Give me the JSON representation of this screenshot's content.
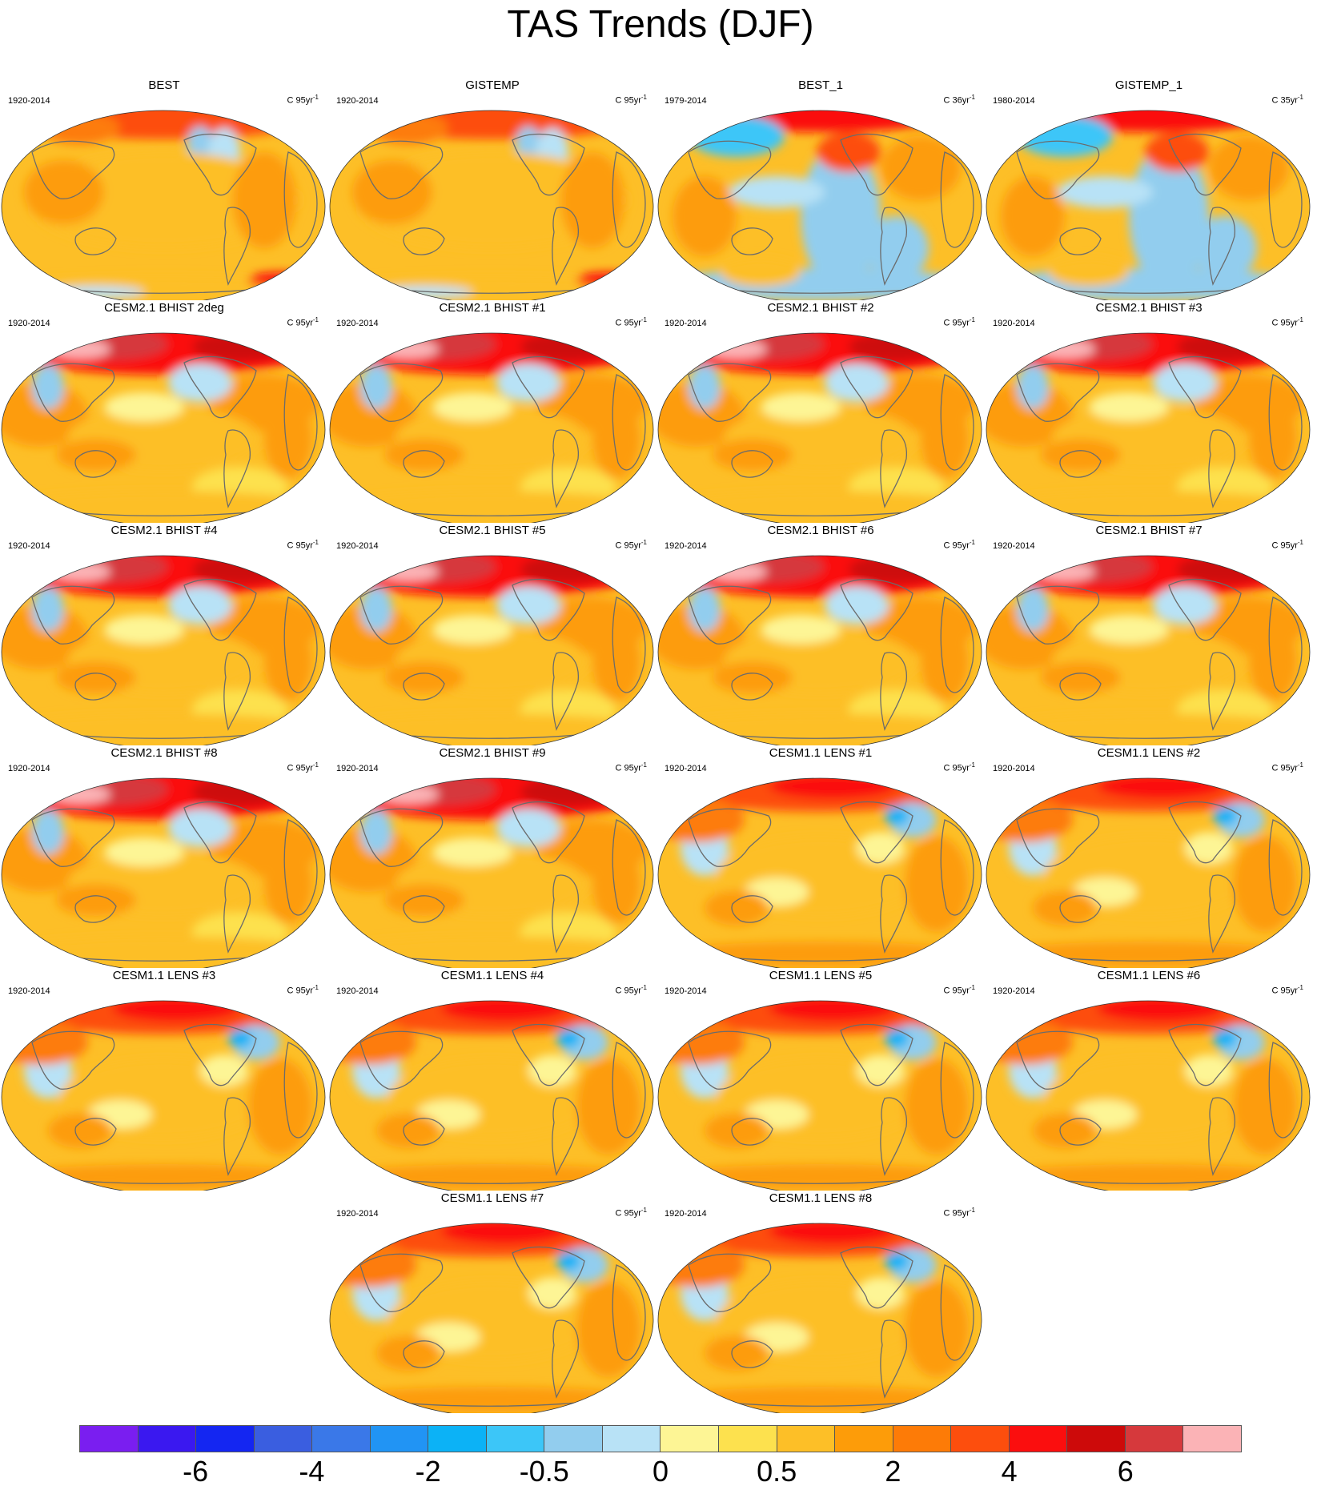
{
  "title": "TAS Trends (DJF)",
  "panels": [
    {
      "title": "BEST",
      "period": "1920-2014",
      "units": "C 95yr",
      "units_sup": "-1",
      "pattern": "obs_long"
    },
    {
      "title": "GISTEMP",
      "period": "1920-2014",
      "units": "C 95yr",
      "units_sup": "-1",
      "pattern": "obs_long"
    },
    {
      "title": "BEST_1",
      "period": "1979-2014",
      "units": "C 36yr",
      "units_sup": "-1",
      "pattern": "obs_short"
    },
    {
      "title": "GISTEMP_1",
      "period": "1980-2014",
      "units": "C 35yr",
      "units_sup": "-1",
      "pattern": "obs_short"
    },
    {
      "title": "CESM2.1 BHIST 2deg",
      "period": "1920-2014",
      "units": "C 95yr",
      "units_sup": "-1",
      "pattern": "model"
    },
    {
      "title": "CESM2.1 BHIST #1",
      "period": "1920-2014",
      "units": "C 95yr",
      "units_sup": "-1",
      "pattern": "model"
    },
    {
      "title": "CESM2.1 BHIST #2",
      "period": "1920-2014",
      "units": "C 95yr",
      "units_sup": "-1",
      "pattern": "model"
    },
    {
      "title": "CESM2.1 BHIST #3",
      "period": "1920-2014",
      "units": "C 95yr",
      "units_sup": "-1",
      "pattern": "model"
    },
    {
      "title": "CESM2.1 BHIST #4",
      "period": "1920-2014",
      "units": "C 95yr",
      "units_sup": "-1",
      "pattern": "model"
    },
    {
      "title": "CESM2.1 BHIST #5",
      "period": "1920-2014",
      "units": "C 95yr",
      "units_sup": "-1",
      "pattern": "model"
    },
    {
      "title": "CESM2.1 BHIST #6",
      "period": "1920-2014",
      "units": "C 95yr",
      "units_sup": "-1",
      "pattern": "model"
    },
    {
      "title": "CESM2.1 BHIST #7",
      "period": "1920-2014",
      "units": "C 95yr",
      "units_sup": "-1",
      "pattern": "model"
    },
    {
      "title": "CESM2.1 BHIST #8",
      "period": "1920-2014",
      "units": "C 95yr",
      "units_sup": "-1",
      "pattern": "model"
    },
    {
      "title": "CESM2.1 BHIST #9",
      "period": "1920-2014",
      "units": "C 95yr",
      "units_sup": "-1",
      "pattern": "model"
    },
    {
      "title": "CESM1.1 LENS #1",
      "period": "1920-2014",
      "units": "C 95yr",
      "units_sup": "-1",
      "pattern": "lens"
    },
    {
      "title": "CESM1.1 LENS #2",
      "period": "1920-2014",
      "units": "C 95yr",
      "units_sup": "-1",
      "pattern": "lens"
    },
    {
      "title": "CESM1.1 LENS #3",
      "period": "1920-2014",
      "units": "C 95yr",
      "units_sup": "-1",
      "pattern": "lens"
    },
    {
      "title": "CESM1.1 LENS #4",
      "period": "1920-2014",
      "units": "C 95yr",
      "units_sup": "-1",
      "pattern": "lens"
    },
    {
      "title": "CESM1.1 LENS #5",
      "period": "1920-2014",
      "units": "C 95yr",
      "units_sup": "-1",
      "pattern": "lens"
    },
    {
      "title": "CESM1.1 LENS #6",
      "period": "1920-2014",
      "units": "C 95yr",
      "units_sup": "-1",
      "pattern": "lens"
    },
    {
      "title": "CESM1.1 LENS #7",
      "period": "1920-2014",
      "units": "C 95yr",
      "units_sup": "-1",
      "pattern": "lens"
    },
    {
      "title": "CESM1.1 LENS #8",
      "period": "1920-2014",
      "units": "C 95yr",
      "units_sup": "-1",
      "pattern": "lens"
    }
  ],
  "colorbar": {
    "colors": [
      "#7a1ef0",
      "#3a18f0",
      "#1426f2",
      "#3a5ee0",
      "#3a78e8",
      "#2194f4",
      "#0cb2f6",
      "#3cc6f8",
      "#92cdee",
      "#b8e2f6",
      "#fdf595",
      "#fde14e",
      "#fdbf27",
      "#fd9c09",
      "#fd7b07",
      "#fd4e0d",
      "#fb0e0e",
      "#cd0a0a",
      "#d6393c",
      "#fbb3b6"
    ],
    "ticks": [
      {
        "label": "-6",
        "boundary": 2
      },
      {
        "label": "-4",
        "boundary": 4
      },
      {
        "label": "-2",
        "boundary": 6
      },
      {
        "label": "-0.5",
        "boundary": 8
      },
      {
        "label": "0",
        "boundary": 10
      },
      {
        "label": "0.5",
        "boundary": 12
      },
      {
        "label": "2",
        "boundary": 14
      },
      {
        "label": "4",
        "boundary": 16
      },
      {
        "label": "6",
        "boundary": 18
      }
    ]
  }
}
